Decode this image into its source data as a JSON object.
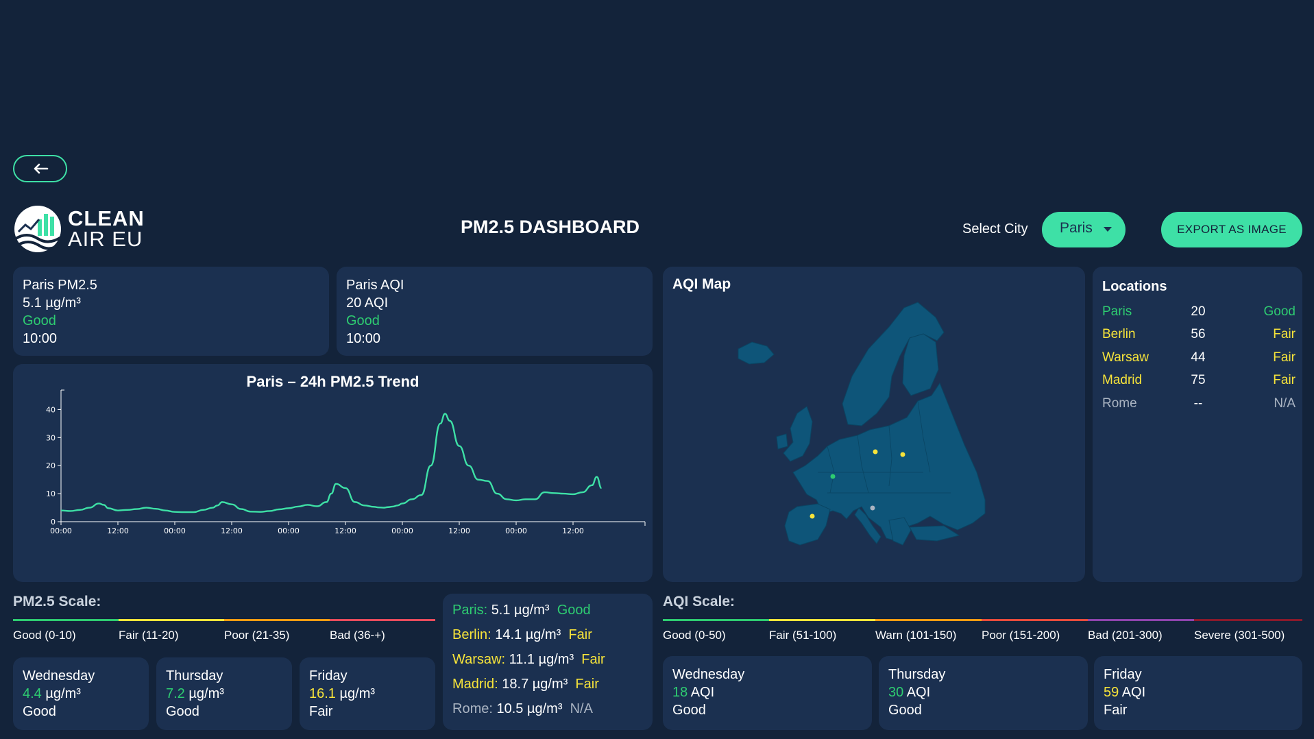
{
  "header": {
    "brand_line1": "CLEAN",
    "brand_line2": "AIR EU",
    "title": "PM2.5 DASHBOARD",
    "select_label": "Select City",
    "selected_city": "Paris",
    "export_label": "EXPORT AS IMAGE"
  },
  "pm_card": {
    "title": "Paris PM2.5",
    "value": "5.1 µg/m³",
    "status": "Good",
    "time": "10:00"
  },
  "aqi_card": {
    "title": "Paris AQI",
    "value": "20 AQI",
    "status": "Good",
    "time": "10:00"
  },
  "chart_data": {
    "type": "line",
    "title": "Paris – 24h PM2.5 Trend",
    "x_tick_labels": [
      "00:00",
      "12:00",
      "00:00",
      "12:00",
      "00:00",
      "12:00",
      "00:00",
      "12:00",
      "00:00",
      "12:00"
    ],
    "y_ticks": [
      0,
      10,
      20,
      30,
      40
    ],
    "ylim": [
      0,
      45
    ],
    "x_range_hours": [
      0,
      120
    ],
    "grid": false,
    "color": "#3ee0a6",
    "series": [
      {
        "x": [
          0,
          2,
          4,
          6,
          8,
          9,
          10,
          12,
          14,
          16,
          18,
          20,
          22,
          24,
          26,
          28,
          30,
          32,
          33,
          34,
          36,
          38,
          40,
          42,
          44,
          46,
          48,
          50,
          52,
          54,
          56,
          57,
          58,
          60,
          62,
          64,
          66,
          67,
          68,
          69,
          70,
          71,
          72,
          74,
          76,
          78,
          80,
          81,
          82,
          84,
          86,
          88,
          90,
          92,
          94,
          96,
          98,
          100,
          102,
          104,
          106,
          108,
          110,
          112,
          113,
          114
        ],
        "y": [
          4,
          3.8,
          4.2,
          5,
          6.5,
          6,
          4.8,
          4,
          4.2,
          4.5,
          5,
          4.6,
          4,
          3.5,
          3.4,
          3.4,
          4.2,
          5,
          5.8,
          7,
          6.2,
          4.5,
          3.6,
          3.5,
          3.8,
          4.4,
          4.8,
          5.4,
          6,
          5.5,
          7,
          10,
          13.5,
          12,
          7,
          5.8,
          5.3,
          5.1,
          5,
          5.2,
          5.4,
          5.8,
          6.5,
          8,
          9.5,
          20,
          35,
          38.5,
          36,
          27,
          20,
          15,
          14.5,
          10,
          8,
          7.6,
          8,
          8,
          10.5,
          10.2,
          10,
          9.8,
          10.5,
          13,
          16,
          12
        ]
      }
    ]
  },
  "map": {
    "title": "AQI Map",
    "markers": [
      {
        "city": "Paris",
        "status_color": "#2ecc71"
      },
      {
        "city": "Berlin",
        "status_color": "#f7e43a"
      },
      {
        "city": "Warsaw",
        "status_color": "#f7e43a"
      },
      {
        "city": "Madrid",
        "status_color": "#f7e43a"
      },
      {
        "city": "Rome",
        "status_color": "#aab4c2"
      }
    ]
  },
  "locations": {
    "title": "Locations",
    "rows": [
      {
        "city": "Paris",
        "aqi": "20",
        "status": "Good",
        "cls": "good"
      },
      {
        "city": "Berlin",
        "aqi": "56",
        "status": "Fair",
        "cls": "fair"
      },
      {
        "city": "Warsaw",
        "aqi": "44",
        "status": "Fair",
        "cls": "fair"
      },
      {
        "city": "Madrid",
        "aqi": "75",
        "status": "Fair",
        "cls": "fair"
      },
      {
        "city": "Rome",
        "aqi": "--",
        "status": "N/A",
        "cls": "na"
      }
    ]
  },
  "pm_scale": {
    "title": "PM2.5 Scale:",
    "bands": [
      {
        "label": "Good (0-10)",
        "color": "#2ecc71"
      },
      {
        "label": "Fair (11-20)",
        "color": "#f7e43a"
      },
      {
        "label": "Poor (21-35)",
        "color": "#f39c12"
      },
      {
        "label": "Bad (36-+)",
        "color": "#e74c5c"
      }
    ]
  },
  "aqi_scale": {
    "title": "AQI Scale:",
    "bands": [
      {
        "label": "Good (0-50)",
        "color": "#2ecc71"
      },
      {
        "label": "Fair (51-100)",
        "color": "#f7e43a"
      },
      {
        "label": "Warn (101-150)",
        "color": "#f39c12"
      },
      {
        "label": "Poor (151-200)",
        "color": "#e74c3c"
      },
      {
        "label": "Bad (201-300)",
        "color": "#8e44ad"
      },
      {
        "label": "Severe (301-500)",
        "color": "#8b1a2b"
      }
    ]
  },
  "pm_forecast": [
    {
      "day": "Wednesday",
      "num": "4.4",
      "unit": " µg/m³",
      "status": "Good",
      "cls": "good"
    },
    {
      "day": "Thursday",
      "num": "7.2",
      "unit": " µg/m³",
      "status": "Good",
      "cls": "good"
    },
    {
      "day": "Friday",
      "num": "16.1",
      "unit": " µg/m³",
      "status": "Fair",
      "cls": "fair"
    }
  ],
  "aqi_forecast": [
    {
      "day": "Wednesday",
      "num": "18",
      "unit": " AQI",
      "status": "Good",
      "cls": "good"
    },
    {
      "day": "Thursday",
      "num": "30",
      "unit": " AQI",
      "status": "Good",
      "cls": "good"
    },
    {
      "day": "Friday",
      "num": "59",
      "unit": " AQI",
      "status": "Fair",
      "cls": "fair"
    }
  ],
  "pm_summary": [
    {
      "city": "Paris:",
      "value": "5.1 µg/m³",
      "status": "Good",
      "cls": "good"
    },
    {
      "city": "Berlin:",
      "value": "14.1 µg/m³",
      "status": "Fair",
      "cls": "fair"
    },
    {
      "city": "Warsaw:",
      "value": "11.1 µg/m³",
      "status": "Fair",
      "cls": "fair"
    },
    {
      "city": "Madrid:",
      "value": "18.7 µg/m³",
      "status": "Fair",
      "cls": "fair"
    },
    {
      "city": "Rome:",
      "value": "10.5 µg/m³",
      "status": "N/A",
      "cls": "na"
    }
  ]
}
